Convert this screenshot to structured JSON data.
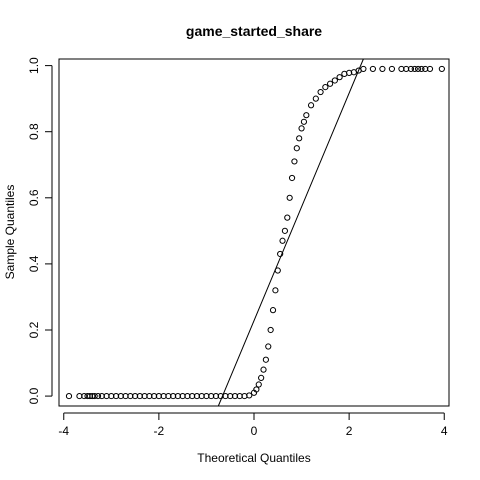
{
  "chart_data": {
    "type": "scatter",
    "title": "game_started_share",
    "xlabel": "Theoretical Quantiles",
    "ylabel": "Sample Quantiles",
    "xlim": [
      -4.1,
      4.1
    ],
    "ylim": [
      -0.03,
      1.02
    ],
    "x_ticks": [
      -4,
      -2,
      0,
      2,
      4
    ],
    "y_ticks": [
      0.0,
      0.2,
      0.4,
      0.6,
      0.8,
      1.0
    ],
    "x_tick_labels": [
      "-4",
      "-2",
      "0",
      "2",
      "4"
    ],
    "y_tick_labels": [
      "0.0",
      "0.2",
      "0.4",
      "0.6",
      "0.8",
      "1.0"
    ],
    "point_style": "open-circle",
    "series": [
      {
        "points": [
          [
            -3.89,
            0.0
          ],
          [
            -3.67,
            0.0
          ],
          [
            -3.57,
            0.0
          ],
          [
            -3.5,
            0.0
          ],
          [
            -3.45,
            0.0
          ],
          [
            -3.4,
            0.0
          ],
          [
            -3.35,
            0.0
          ],
          [
            -3.28,
            0.0
          ],
          [
            -3.2,
            0.0
          ],
          [
            -3.1,
            0.0
          ],
          [
            -3.0,
            0.0
          ],
          [
            -2.9,
            0.0
          ],
          [
            -2.8,
            0.0
          ],
          [
            -2.7,
            0.0
          ],
          [
            -2.6,
            0.0
          ],
          [
            -2.5,
            0.0
          ],
          [
            -2.4,
            0.0
          ],
          [
            -2.3,
            0.0
          ],
          [
            -2.2,
            0.0
          ],
          [
            -2.1,
            0.0
          ],
          [
            -2.0,
            0.0
          ],
          [
            -1.9,
            0.0
          ],
          [
            -1.8,
            0.0
          ],
          [
            -1.7,
            0.0
          ],
          [
            -1.6,
            0.0
          ],
          [
            -1.5,
            0.0
          ],
          [
            -1.4,
            0.0
          ],
          [
            -1.3,
            0.0
          ],
          [
            -1.2,
            0.0
          ],
          [
            -1.1,
            0.0
          ],
          [
            -1.0,
            0.0
          ],
          [
            -0.9,
            0.0
          ],
          [
            -0.8,
            0.0
          ],
          [
            -0.7,
            0.0
          ],
          [
            -0.6,
            0.0
          ],
          [
            -0.5,
            0.0
          ],
          [
            -0.4,
            0.0
          ],
          [
            -0.3,
            0.0
          ],
          [
            -0.2,
            0.0
          ],
          [
            -0.1,
            0.002
          ],
          [
            0.0,
            0.01
          ],
          [
            0.05,
            0.02
          ],
          [
            0.1,
            0.035
          ],
          [
            0.15,
            0.055
          ],
          [
            0.2,
            0.08
          ],
          [
            0.25,
            0.11
          ],
          [
            0.3,
            0.15
          ],
          [
            0.35,
            0.2
          ],
          [
            0.4,
            0.26
          ],
          [
            0.45,
            0.32
          ],
          [
            0.5,
            0.38
          ],
          [
            0.55,
            0.43
          ],
          [
            0.6,
            0.47
          ],
          [
            0.65,
            0.5
          ],
          [
            0.7,
            0.54
          ],
          [
            0.75,
            0.6
          ],
          [
            0.8,
            0.66
          ],
          [
            0.85,
            0.71
          ],
          [
            0.9,
            0.75
          ],
          [
            0.95,
            0.78
          ],
          [
            1.0,
            0.81
          ],
          [
            1.05,
            0.83
          ],
          [
            1.1,
            0.85
          ],
          [
            1.2,
            0.88
          ],
          [
            1.3,
            0.9
          ],
          [
            1.4,
            0.92
          ],
          [
            1.5,
            0.935
          ],
          [
            1.6,
            0.945
          ],
          [
            1.7,
            0.955
          ],
          [
            1.8,
            0.965
          ],
          [
            1.9,
            0.975
          ],
          [
            2.0,
            0.978
          ],
          [
            2.1,
            0.98
          ],
          [
            2.2,
            0.985
          ],
          [
            2.3,
            0.99
          ],
          [
            2.5,
            0.99
          ],
          [
            2.7,
            0.99
          ],
          [
            2.9,
            0.99
          ],
          [
            3.1,
            0.99
          ],
          [
            3.2,
            0.99
          ],
          [
            3.3,
            0.99
          ],
          [
            3.38,
            0.99
          ],
          [
            3.45,
            0.99
          ],
          [
            3.52,
            0.99
          ],
          [
            3.6,
            0.99
          ],
          [
            3.7,
            0.99
          ],
          [
            3.95,
            0.99
          ]
        ]
      }
    ],
    "reference_line": {
      "points": [
        [
          -0.75,
          -0.03
        ],
        [
          2.3,
          1.02
        ]
      ]
    }
  }
}
